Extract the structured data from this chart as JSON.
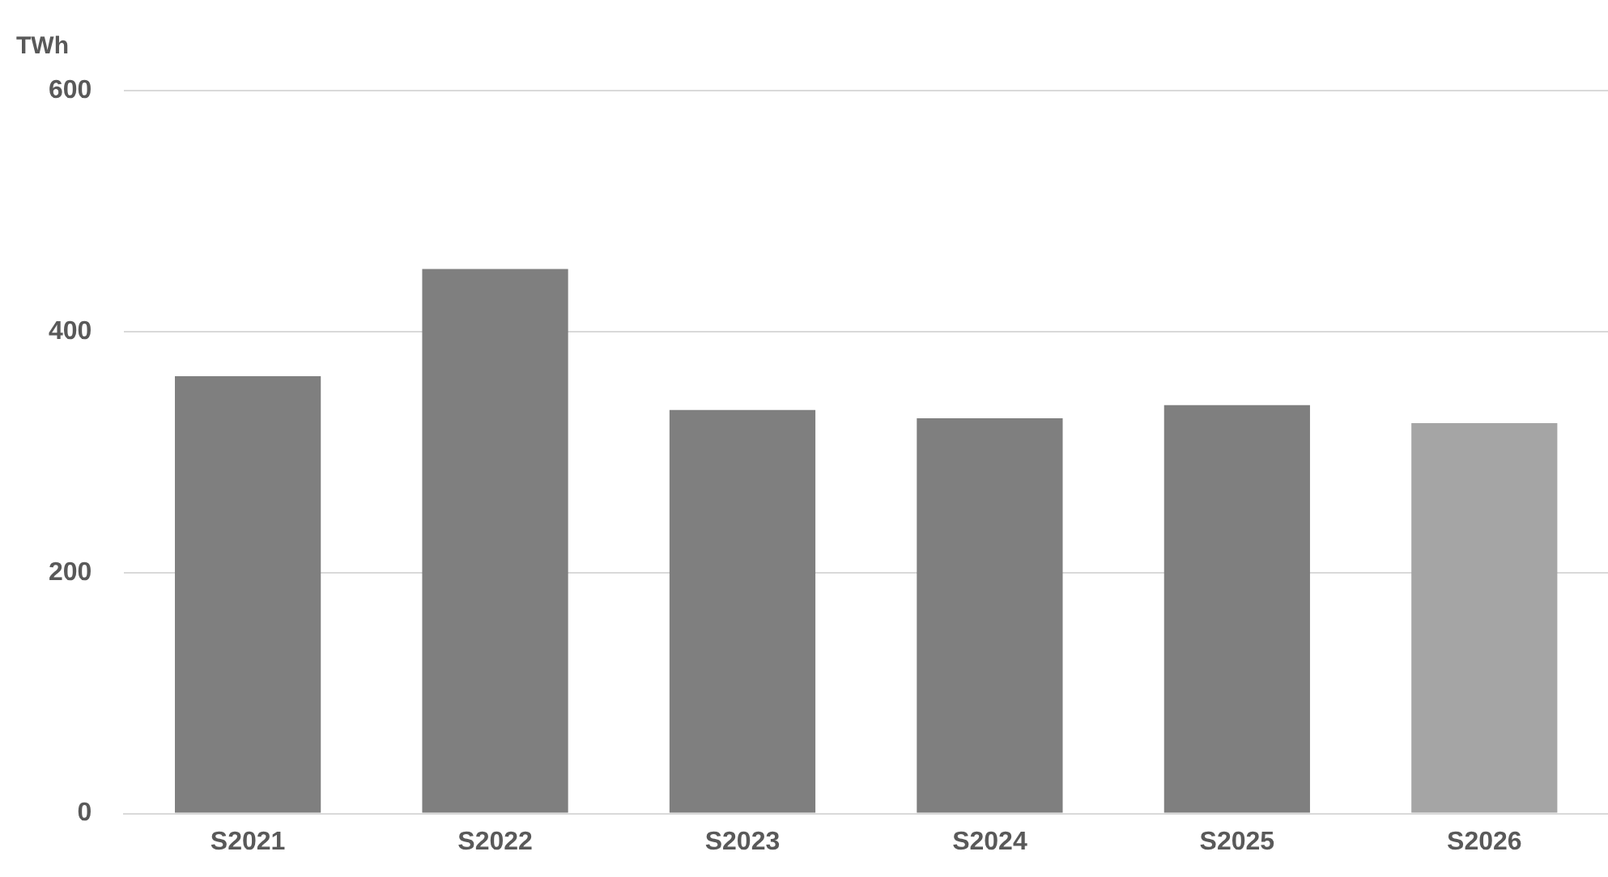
{
  "chart_data": {
    "type": "bar",
    "ylabel": "TWh",
    "categories": [
      "S2021",
      "S2022",
      "S2023",
      "S2024",
      "S2025",
      "S2026"
    ],
    "values": [
      363,
      452,
      335,
      328,
      339,
      324
    ],
    "colors": [
      "#7f7f7f",
      "#7f7f7f",
      "#7f7f7f",
      "#7f7f7f",
      "#7f7f7f",
      "#a5a5a5"
    ],
    "ylim": [
      0,
      600
    ],
    "yticks": [
      0,
      200,
      400,
      600
    ],
    "grid": "y",
    "legend": false
  }
}
